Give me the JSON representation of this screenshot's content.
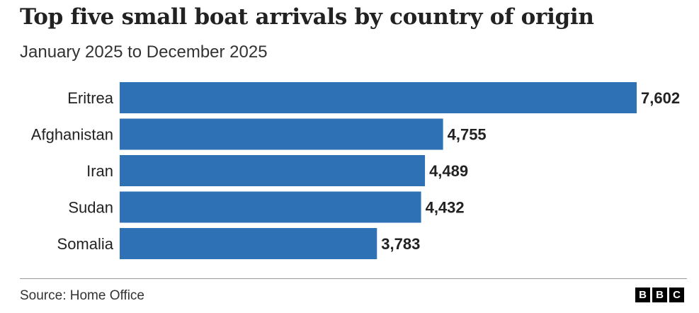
{
  "chart_data": {
    "type": "bar",
    "orientation": "horizontal",
    "title": "Top five small boat arrivals by country of origin",
    "subtitle": "January 2025 to December 2025",
    "categories": [
      "Eritrea",
      "Afghanistan",
      "Iran",
      "Sudan",
      "Somalia"
    ],
    "values": [
      7602,
      4755,
      4489,
      4432,
      3783
    ],
    "value_labels": [
      "7,602",
      "4,755",
      "4,489",
      "4,432",
      "3,783"
    ],
    "xlabel": "",
    "ylabel": "",
    "xlim": [
      0,
      7602
    ],
    "grid": false,
    "bar_color": "#2e72b5"
  },
  "footer": {
    "source": "Source: Home Office",
    "logo_letters": [
      "B",
      "B",
      "C"
    ]
  }
}
